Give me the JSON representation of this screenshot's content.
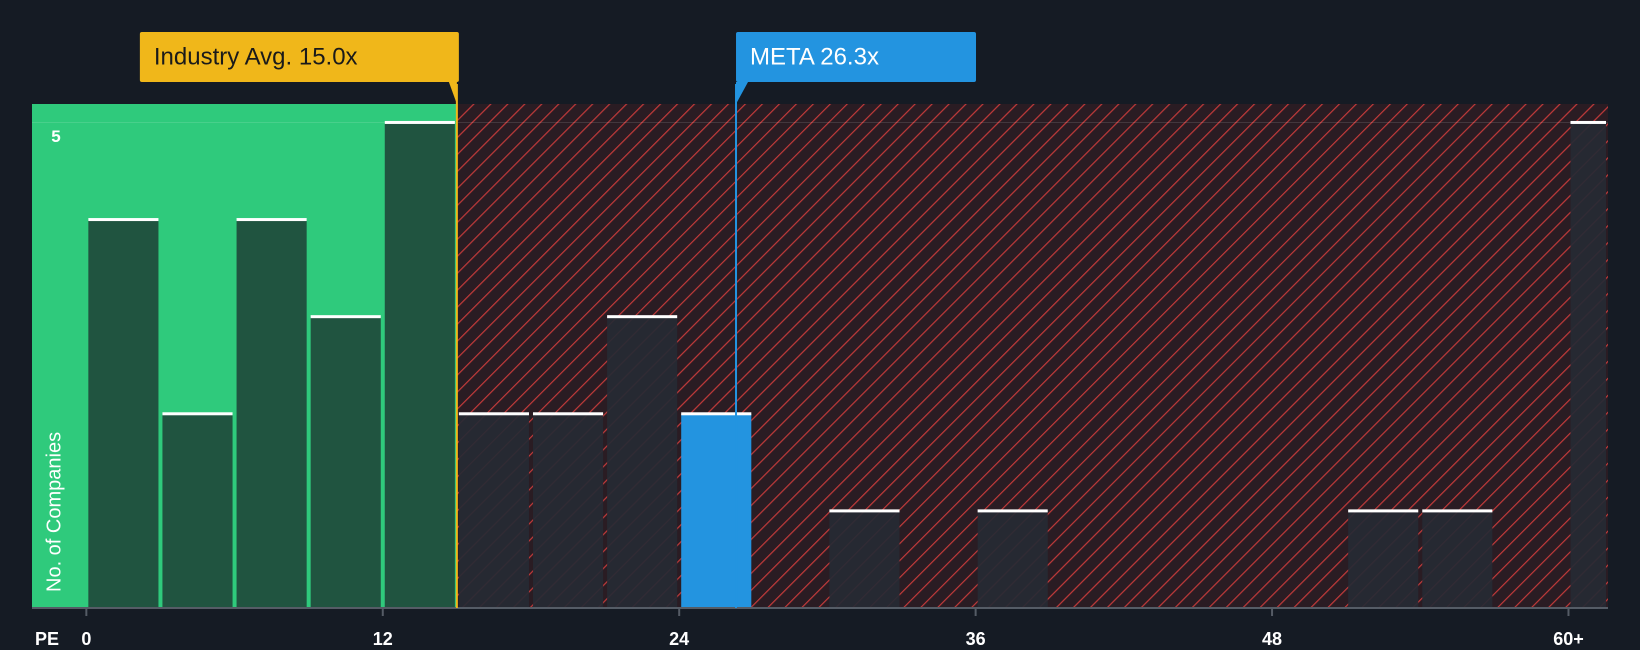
{
  "chart_data": {
    "type": "histogram",
    "x_label": "PE",
    "y_label": "No. of Companies",
    "bins": [
      0,
      3,
      6,
      9,
      12,
      15,
      18,
      21,
      24,
      27,
      30,
      33,
      36,
      39,
      42,
      45,
      48,
      51,
      54,
      57,
      60,
      63
    ],
    "values": [
      4,
      2,
      4,
      3,
      5,
      2,
      2,
      3,
      2,
      0,
      1,
      0,
      1,
      0,
      0,
      0,
      0,
      1,
      1,
      0,
      5
    ],
    "xlim": [
      -2.2,
      61.6
    ],
    "ylim": [
      0,
      5.19
    ],
    "xticks": [
      0,
      12,
      24,
      36,
      48,
      {
        "value": 60,
        "label": "60+"
      }
    ],
    "yticks": [
      5
    ],
    "industry_avg": {
      "label": "Industry Avg. 15.0x",
      "value": 15.0,
      "color": "#f0b71a"
    },
    "company": {
      "label": "META 26.3x",
      "value": 26.3,
      "color": "#2394e0"
    },
    "colors": {
      "below": "#2fca7c",
      "above": "#c23a3a",
      "bar_below": "#1f4a3b",
      "bar_above": "#262a34"
    }
  }
}
